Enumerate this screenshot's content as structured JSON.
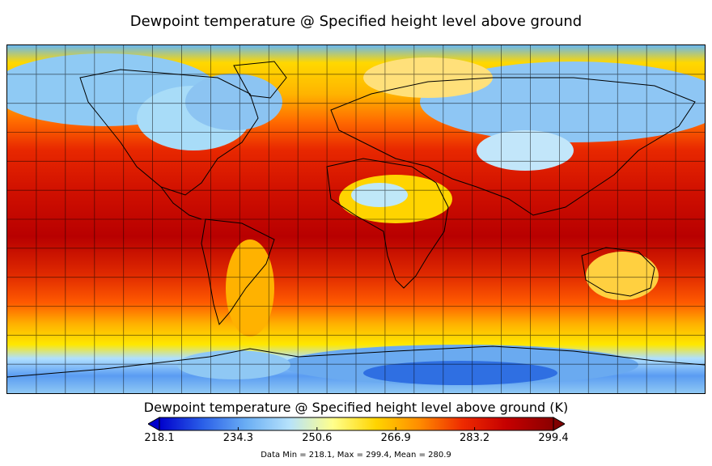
{
  "title": "Dewpoint temperature @ Specified height level above ground",
  "colorbar": {
    "title": "Dewpoint temperature @ Specified height level above ground (K)",
    "ticks": [
      "218.1",
      "234.3",
      "250.6",
      "266.9",
      "283.2",
      "299.4"
    ],
    "colors": [
      "#0000cc",
      "#2a5fe8",
      "#6aaef4",
      "#b6e2fb",
      "#ffff8c",
      "#ffd400",
      "#ff8c00",
      "#ee2a00",
      "#c60000",
      "#8a0000"
    ],
    "under_color": "#0000cc",
    "over_color": "#800000"
  },
  "stats": "Data Min = 218.1, Max = 299.4, Mean = 280.9",
  "map": {
    "projection": "Equirectangular (global)",
    "gridlines": true,
    "coastlines": true
  }
}
